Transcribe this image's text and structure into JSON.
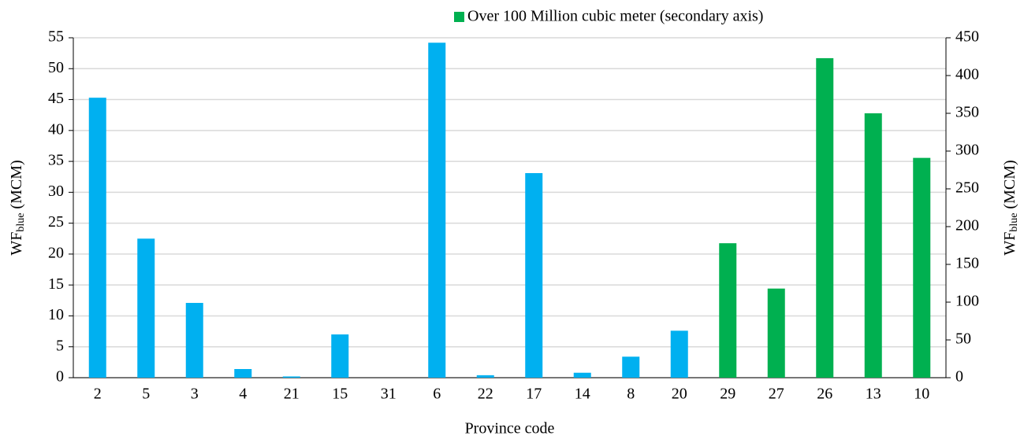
{
  "chart_data": {
    "type": "bar",
    "xlabel": "Province code",
    "ylabel": [
      "WF",
      "blue",
      "(MCM)"
    ],
    "y2label": [
      "WF",
      "blue",
      "(MCM)"
    ],
    "categories": [
      "2",
      "5",
      "3",
      "4",
      "21",
      "15",
      "31",
      "6",
      "22",
      "17",
      "14",
      "8",
      "20",
      "29",
      "27",
      "26",
      "13",
      "10"
    ],
    "series": [
      {
        "color": "#00b0f0",
        "values": [
          45.3,
          22.5,
          12.1,
          1.4,
          0.2,
          7.0,
          0,
          54.2,
          0.4,
          33.1,
          0.8,
          3.4,
          7.6,
          null,
          null,
          null,
          null,
          null
        ]
      },
      {
        "name": "Over 100 Million cubic meter (secondary axis)",
        "color": "#00b050",
        "axis": "y2",
        "values": [
          null,
          null,
          null,
          null,
          null,
          null,
          null,
          null,
          null,
          null,
          null,
          null,
          null,
          178,
          118,
          423,
          350,
          291
        ]
      }
    ],
    "ylim": [
      0,
      55
    ],
    "yticks": [
      0,
      5,
      10,
      15,
      20,
      25,
      30,
      35,
      40,
      45,
      50,
      55
    ],
    "y2lim": [
      0,
      450
    ],
    "y2ticks": [
      0,
      50,
      100,
      150,
      200,
      250,
      300,
      350,
      400,
      450
    ],
    "grid": true,
    "legend": "top"
  }
}
